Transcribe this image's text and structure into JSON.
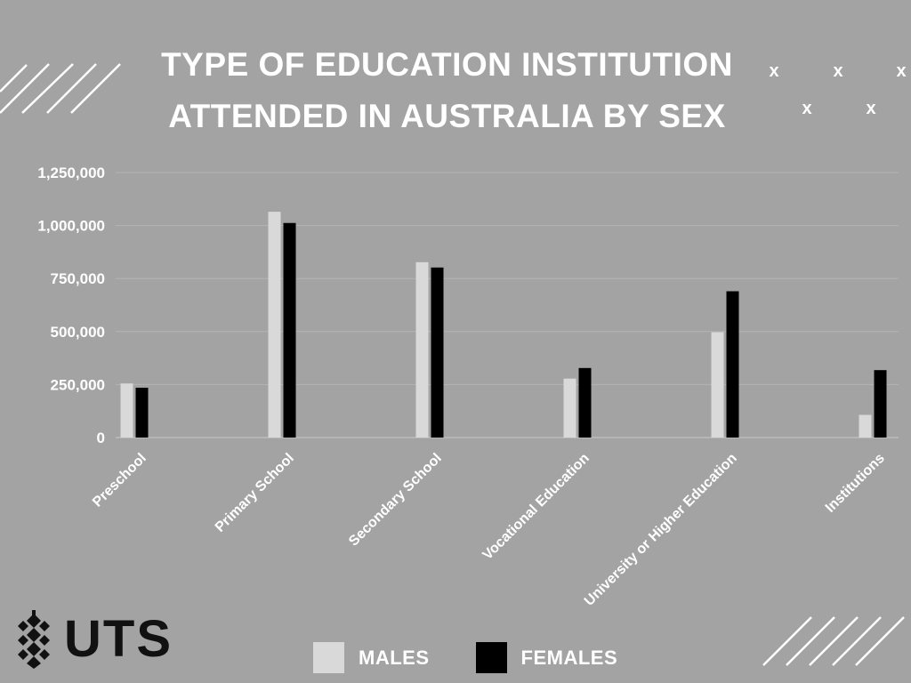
{
  "chart_data": {
    "type": "bar",
    "title_lines": [
      "TYPE OF EDUCATION INSTITUTION",
      "ATTENDED IN AUSTRALIA BY SEX"
    ],
    "categories": [
      "Preschool",
      "Primary School",
      "Secondary School",
      "Vocational Education",
      "University or Higher Education",
      "Institutions"
    ],
    "series": [
      {
        "name": "MALES",
        "color": "#d9d9d9",
        "values": [
          255000,
          1065000,
          827000,
          278000,
          497000,
          107000
        ]
      },
      {
        "name": "FEMALES",
        "color": "#000000",
        "values": [
          235000,
          1012000,
          802000,
          328000,
          690000,
          318000
        ]
      }
    ],
    "y_ticks": [
      "0",
      "250,000",
      "500,000",
      "750,000",
      "1,000,000",
      "1,250,000"
    ],
    "ylim": [
      0,
      1250000
    ],
    "grid": true,
    "legend_position": "bottom-center"
  },
  "logo": {
    "text": "UTS"
  },
  "decorations": {
    "x_marks": [
      "x",
      "x",
      "x",
      "x",
      "x"
    ]
  }
}
